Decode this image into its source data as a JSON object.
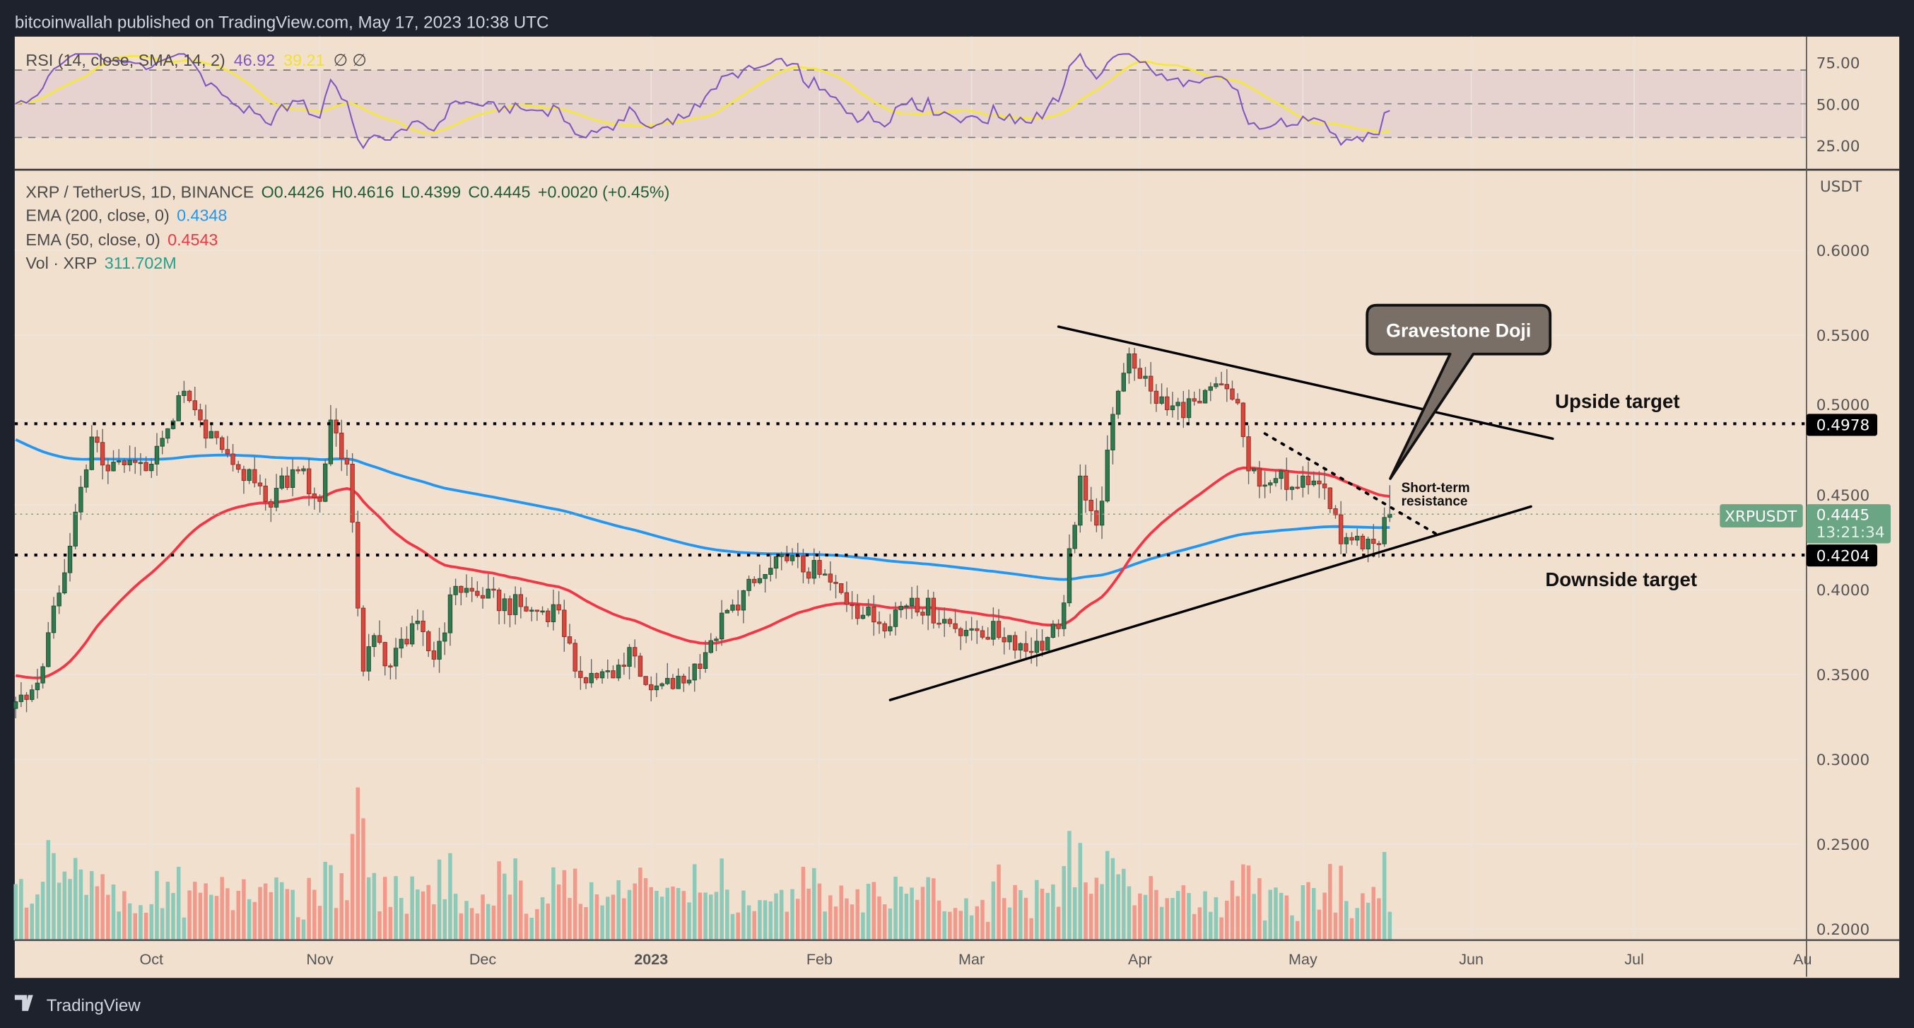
{
  "header": {
    "published": "bitcoinwallah published on TradingView.com, May 17, 2023 10:38 UTC"
  },
  "footer": {
    "brand": "TradingView"
  },
  "legend": {
    "rsi_label": "RSI (14, close, SMA, 14, 2)",
    "rsi_value": "46.92",
    "rsi_sma_value": "39.21",
    "rsi_extra": "∅ ∅",
    "symbol": "XRP / TetherUS, 1D, BINANCE",
    "open": "O0.4426",
    "high": "H0.4616",
    "low": "L0.4399",
    "close": "C0.4445",
    "change": "+0.0020 (+0.45%)",
    "ema200_label": "EMA (200, close, 0)",
    "ema200_value": "0.4348",
    "ema50_label": "EMA (50, close, 0)",
    "ema50_value": "0.4543",
    "vol_label": "Vol · XRP",
    "vol_value": "311.702M"
  },
  "price_axis": {
    "unit": "USDT",
    "ticks": [
      "0.6000",
      "0.5500",
      "0.5000",
      "0.4500",
      "0.4000",
      "0.3500",
      "0.3000",
      "0.2500",
      "0.2000"
    ],
    "rsi_ticks": [
      "75.00",
      "50.00",
      "25.00"
    ],
    "upper_level": "0.4978",
    "lower_level": "0.4204",
    "symbol_tag": "XRPUSDT",
    "last_price": "0.4445",
    "countdown": "13:21:34"
  },
  "annotations": {
    "callout": "Gravestone Doji",
    "upside": "Upside target",
    "downside": "Downside target",
    "resistance_1": "Short-term",
    "resistance_2": "resistance"
  },
  "colors": {
    "up": "#2f7a4f",
    "down": "#d8463c",
    "vol_up": "#8cc9b8",
    "vol_down": "#f19a8c",
    "ema200": "#2196f3",
    "ema50": "#f23645",
    "rsi": "#7e57c2",
    "rsi_sma": "#f5e83a",
    "last_price": "#6aa584"
  },
  "chart_data": {
    "type": "candlestick",
    "title": "XRP / TetherUS, 1D, BINANCE",
    "ylabel": "USDT",
    "ylim": [
      0.2,
      0.63
    ],
    "x_ticks": [
      {
        "label": "Oct",
        "date": "2022-10-01"
      },
      {
        "label": "Nov",
        "date": "2022-11-01"
      },
      {
        "label": "Dec",
        "date": "2022-12-01"
      },
      {
        "label": "2023",
        "date": "2023-01-01",
        "bold": true
      },
      {
        "label": "Feb",
        "date": "2023-02-01"
      },
      {
        "label": "Mar",
        "date": "2023-03-01"
      },
      {
        "label": "Apr",
        "date": "2023-04-01"
      },
      {
        "label": "May",
        "date": "2023-05-01"
      },
      {
        "label": "Jun",
        "date": "2023-06-01"
      },
      {
        "label": "Jul",
        "date": "2023-07-01"
      },
      {
        "label": "Au",
        "date": "2023-08-01"
      }
    ],
    "y_ticks": [
      0.6,
      0.55,
      0.5,
      0.45,
      0.4,
      0.35,
      0.3,
      0.25,
      0.2
    ],
    "close_anchors": [
      [
        "2022-09-06",
        0.334
      ],
      [
        "2022-09-10",
        0.345
      ],
      [
        "2022-09-15",
        0.41
      ],
      [
        "2022-09-20",
        0.49
      ],
      [
        "2022-09-23",
        0.47
      ],
      [
        "2022-10-01",
        0.474
      ],
      [
        "2022-10-07",
        0.517
      ],
      [
        "2022-10-10",
        0.5
      ],
      [
        "2022-10-15",
        0.48
      ],
      [
        "2022-10-22",
        0.452
      ],
      [
        "2022-10-28",
        0.47
      ],
      [
        "2022-11-01",
        0.452
      ],
      [
        "2022-11-03",
        0.5
      ],
      [
        "2022-11-06",
        0.474
      ],
      [
        "2022-11-09",
        0.352
      ],
      [
        "2022-11-11",
        0.373
      ],
      [
        "2022-11-14",
        0.355
      ],
      [
        "2022-11-18",
        0.38
      ],
      [
        "2022-11-22",
        0.359
      ],
      [
        "2022-11-26",
        0.402
      ],
      [
        "2022-12-01",
        0.395
      ],
      [
        "2022-12-10",
        0.388
      ],
      [
        "2022-12-15",
        0.388
      ],
      [
        "2022-12-18",
        0.352
      ],
      [
        "2022-12-25",
        0.348
      ],
      [
        "2022-12-28",
        0.366
      ],
      [
        "2023-01-01",
        0.341
      ],
      [
        "2023-01-07",
        0.345
      ],
      [
        "2023-01-12",
        0.37
      ],
      [
        "2023-01-16",
        0.391
      ],
      [
        "2023-01-22",
        0.409
      ],
      [
        "2023-01-26",
        0.417
      ],
      [
        "2023-02-01",
        0.409
      ],
      [
        "2023-02-07",
        0.391
      ],
      [
        "2023-02-12",
        0.38
      ],
      [
        "2023-02-18",
        0.395
      ],
      [
        "2023-02-25",
        0.38
      ],
      [
        "2023-03-01",
        0.377
      ],
      [
        "2023-03-08",
        0.373
      ],
      [
        "2023-03-12",
        0.363
      ],
      [
        "2023-03-17",
        0.377
      ],
      [
        "2023-03-20",
        0.438
      ],
      [
        "2023-03-21",
        0.467
      ],
      [
        "2023-03-24",
        0.438
      ],
      [
        "2023-03-28",
        0.517
      ],
      [
        "2023-03-30",
        0.539
      ],
      [
        "2023-04-03",
        0.517
      ],
      [
        "2023-04-06",
        0.506
      ],
      [
        "2023-04-12",
        0.51
      ],
      [
        "2023-04-16",
        0.521
      ],
      [
        "2023-04-19",
        0.51
      ],
      [
        "2023-04-21",
        0.47
      ],
      [
        "2023-04-25",
        0.463
      ],
      [
        "2023-05-01",
        0.467
      ],
      [
        "2023-05-05",
        0.46
      ],
      [
        "2023-05-08",
        0.427
      ],
      [
        "2023-05-12",
        0.424
      ],
      [
        "2023-05-15",
        0.427
      ],
      [
        "2023-05-16",
        0.4426
      ]
    ],
    "last_candle": {
      "date": "2023-05-17",
      "open": 0.4426,
      "high": 0.4616,
      "low": 0.4399,
      "close": 0.4445
    },
    "indicators": {
      "ema200_seed": 0.49,
      "ema50_seed": 0.35,
      "rsi_period": 14,
      "rsi_sma_period": 14,
      "rsi_levels": [
        70,
        50,
        30
      ]
    },
    "horizontal_levels": [
      0.4978,
      0.4204
    ],
    "trendlines": [
      {
        "name": "upper-trendline",
        "from": [
          "2023-03-17",
          0.555
        ],
        "to": [
          "2023-06-16",
          0.489
        ],
        "style": "solid"
      },
      {
        "name": "lower-trendline",
        "from": [
          "2023-02-14",
          0.335
        ],
        "to": [
          "2023-06-12",
          0.449
        ],
        "style": "solid"
      },
      {
        "name": "short-term-resistance-line",
        "from": [
          "2023-04-24",
          0.492
        ],
        "to": [
          "2023-05-26",
          0.432
        ],
        "style": "dotted"
      }
    ]
  }
}
